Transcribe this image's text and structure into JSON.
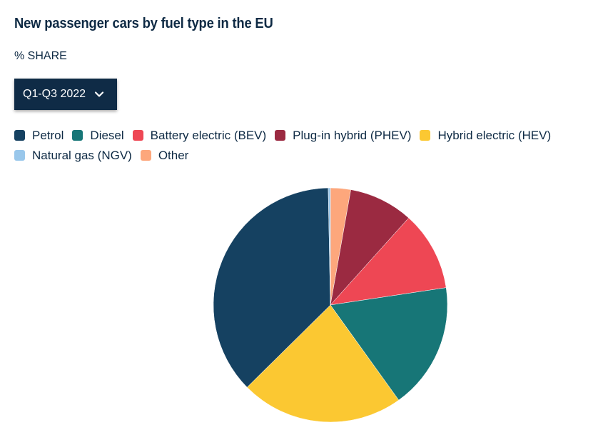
{
  "header": {
    "title": "New passenger cars by fuel type in the EU",
    "subtitle": "% SHARE"
  },
  "period_select": {
    "selected": "Q1-Q3 2022",
    "icon": "chevron-down-icon"
  },
  "chart_data": {
    "type": "pie",
    "title": "New passenger cars by fuel type in the EU",
    "subtitle": "% SHARE",
    "legend_placement": "top",
    "slices": [
      {
        "name": "Other",
        "value": 2.8,
        "color": "#fda77c"
      },
      {
        "name": "Plug-in hybrid (PHEV)",
        "value": 8.9,
        "color": "#9b2a41"
      },
      {
        "name": "Battery electric (BEV)",
        "value": 11.0,
        "color": "#ee4754"
      },
      {
        "name": "Diesel",
        "value": 17.5,
        "color": "#177677"
      },
      {
        "name": "Hybrid electric (HEV)",
        "value": 22.6,
        "color": "#fbc832"
      },
      {
        "name": "Petrol",
        "value": 37.2,
        "color": "#154161"
      },
      {
        "name": "Natural gas (NGV)",
        "value": 0.3,
        "color": "#99c7eb"
      }
    ],
    "legend": [
      {
        "name": "Petrol",
        "color": "#154161"
      },
      {
        "name": "Diesel",
        "color": "#177677"
      },
      {
        "name": "Battery electric (BEV)",
        "color": "#ee4754"
      },
      {
        "name": "Plug-in hybrid (PHEV)",
        "color": "#9b2a41"
      },
      {
        "name": "Hybrid electric (HEV)",
        "color": "#fbc832"
      },
      {
        "name": "Natural gas (NGV)",
        "color": "#99c7eb"
      },
      {
        "name": "Other",
        "color": "#fda77c"
      }
    ]
  }
}
